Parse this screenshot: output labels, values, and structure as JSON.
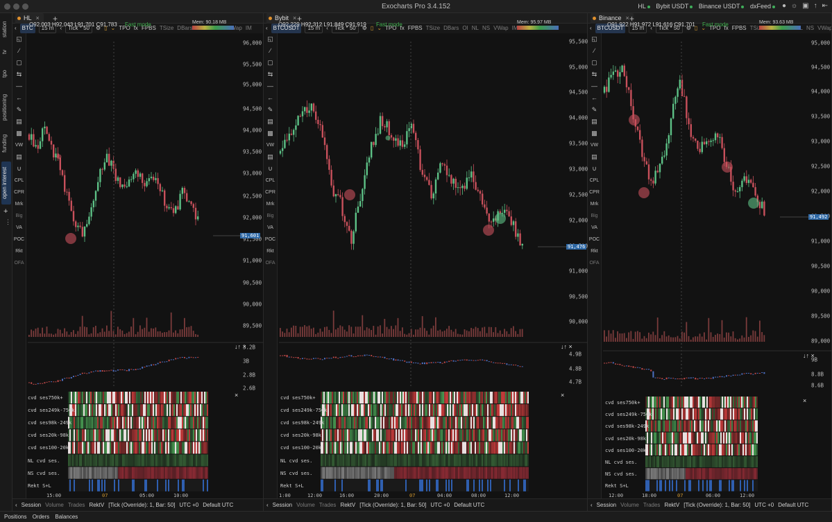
{
  "app": {
    "title": "Exocharts Pro 3.4.152",
    "feeds": [
      "HL",
      "Bybit USDT",
      "Binance USDT",
      "dxFeed"
    ]
  },
  "sidebar": {
    "tabs": [
      "station",
      "tv",
      "tpo",
      "positioning",
      "funding",
      "open interest"
    ]
  },
  "bottom": {
    "tabs": [
      "Positions",
      "Orders",
      "Balances"
    ]
  },
  "common": {
    "timeframe": "15 m",
    "tick": "Tick * 50",
    "tpo": "TPO",
    "fx": "fx",
    "fast": "Fast mode",
    "toolbar_tags": [
      "FPBS",
      "TSize",
      "DBars",
      "OI",
      "NL",
      "NS",
      "VWap",
      "IM"
    ],
    "tools": [
      "CPL",
      "CPR",
      "Mrk",
      "Big",
      "VA",
      "POC",
      "Rkt",
      "OFA"
    ],
    "vw": "VW",
    "bottom_tabs": [
      "Session",
      "Volume",
      "Trades",
      "RektV",
      "[Tick (Override): 1, Bar: 50]",
      "UTC +0",
      "Default UTC"
    ],
    "cvd_labels": [
      "cvd ses750k+",
      "cvd ses249k-750k",
      "cvd ses98k-249k",
      "cvd ses20k-98k",
      "cvd ses100-20k",
      "NL cvd ses.",
      "NS cvd ses.",
      "Rekt S+L"
    ],
    "colors": {
      "up": "#5dc186",
      "down": "#c8505b",
      "accent": "#2f69a6",
      "fast": "#3fb04d"
    }
  },
  "panels": [
    {
      "tab": "HL",
      "symbol": "BTC",
      "ohlc": "O92,003 H92,043 L91,701 C91,783",
      "mem": "Mem: 90.18 MB",
      "price_label": "91,601",
      "price_label_sub": "91,500",
      "yticks": [
        "96,000",
        "95,500",
        "95,000",
        "94,500",
        "94,000",
        "93,500",
        "93,000",
        "92,500",
        "92,000",
        "91,500",
        "91,000",
        "90,500",
        "90,000",
        "89,500"
      ],
      "sub_ticks": [
        "3.2B",
        "3B",
        "2.8B",
        "2.6B"
      ],
      "xticks": [
        "15:00",
        "07",
        "05:00",
        "10:00"
      ]
    },
    {
      "tab": "Bybit",
      "symbol": "BTCUSDT",
      "ohlc": "O92,229 H92,312 L91,849 C91,919",
      "mem": "Mem: 95.97 MB",
      "price_label": "91,476",
      "yticks": [
        "95,500",
        "95,000",
        "94,500",
        "94,000",
        "93,500",
        "93,000",
        "92,500",
        "92,000",
        "91,500",
        "91,000",
        "90,500",
        "90,000"
      ],
      "sub_ticks": [
        "4.9B",
        "4.8B",
        "4.7B"
      ],
      "xticks": [
        "1:00",
        "12:00",
        "16:00",
        "20:00",
        "07",
        "04:00",
        "08:00",
        "12:00"
      ]
    },
    {
      "tab": "Binance",
      "symbol": "BTCUSDT",
      "ohlc": "O91,922 H91,972 L91,616 C91,701",
      "mem": "Mem: 93.63 MB",
      "price_label": "91,492",
      "yticks": [
        "95,000",
        "94,500",
        "94,000",
        "93,500",
        "93,000",
        "92,500",
        "92,000",
        "91,500",
        "91,000",
        "90,500",
        "90,000",
        "89,500",
        "89,000"
      ],
      "sub_ticks": [
        "9B",
        "8.8B",
        "8.6B"
      ],
      "xticks": [
        "12:00",
        "18:00",
        "07",
        "06:00",
        "12:00"
      ]
    }
  ],
  "chart_data": [
    {
      "type": "candlestick",
      "symbol": "BTC",
      "exchange": "HL",
      "close_path": [
        93.9,
        93.6,
        94.1,
        93.5,
        93.2,
        92.4,
        91.8,
        91.6,
        92.2,
        92.9,
        93.4,
        93.1,
        92.6,
        92.9,
        93.1,
        92.8,
        93.0,
        92.7,
        92.2,
        92.1,
        92.6,
        92.3,
        91.9
      ],
      "last": 91601
    },
    {
      "type": "candlestick",
      "symbol": "BTCUSDT",
      "exchange": "Bybit",
      "close_path": [
        93.3,
        93.7,
        94.1,
        94.2,
        93.9,
        92.7,
        92.3,
        91.6,
        92.5,
        93.4,
        94.0,
        93.7,
        93.5,
        93.8,
        93.0,
        92.5,
        93.2,
        92.8,
        92.6,
        92.9,
        92.4,
        91.9,
        92.2,
        91.9,
        91.5
      ],
      "last": 91476
    },
    {
      "type": "candlestick",
      "symbol": "BTCUSDT",
      "exchange": "Binance",
      "close_path": [
        94.0,
        94.4,
        94.5,
        93.6,
        92.8,
        92.2,
        92.5,
        93.4,
        94.3,
        93.3,
        92.8,
        93.1,
        93.2,
        92.5,
        92.0,
        92.3,
        92.0,
        91.6
      ],
      "last": 91492
    }
  ]
}
